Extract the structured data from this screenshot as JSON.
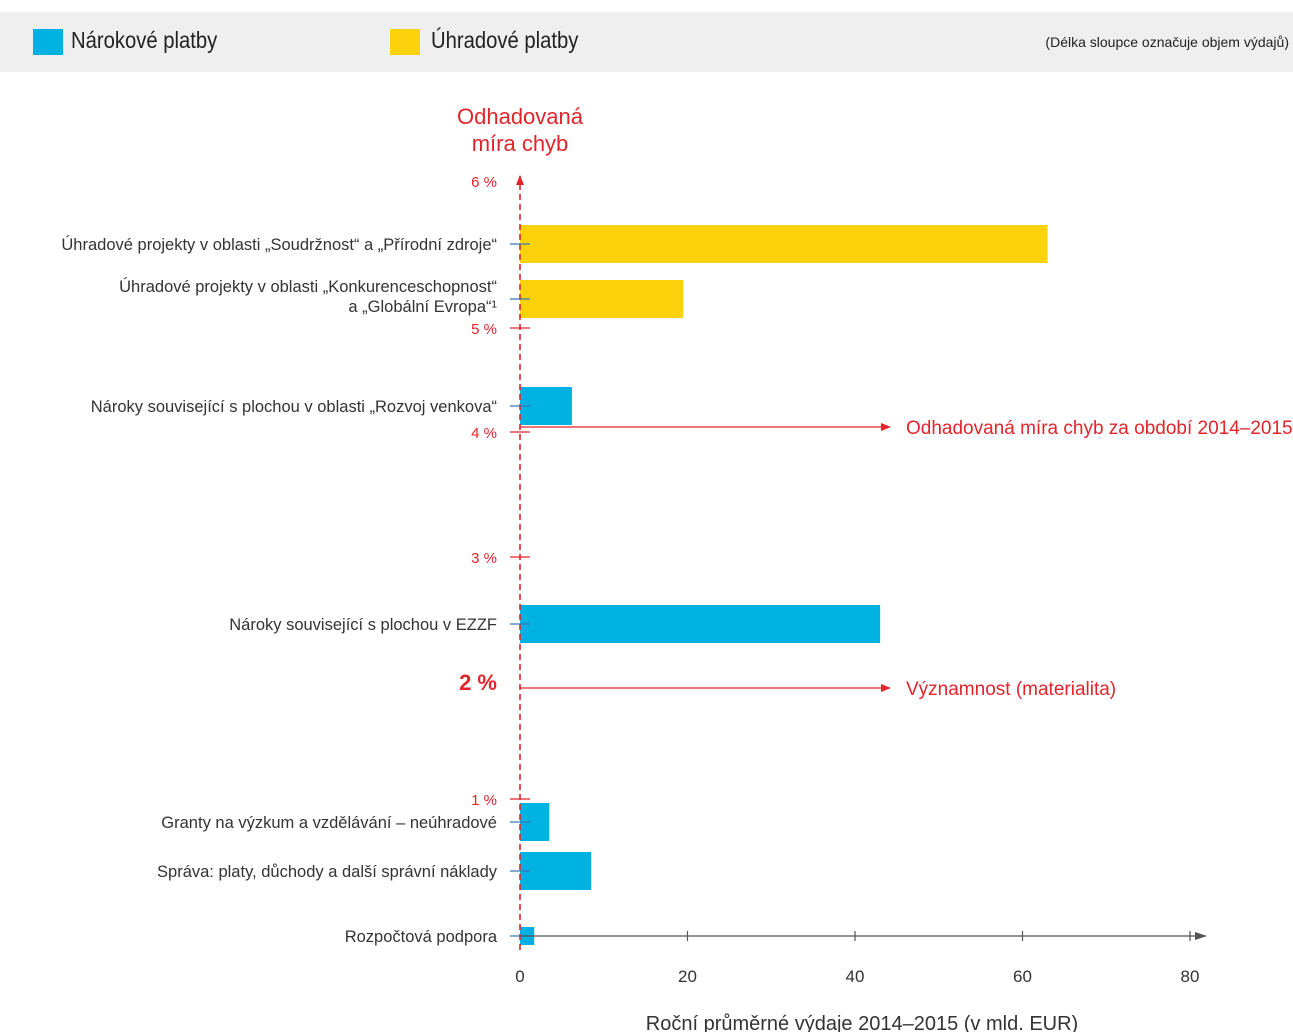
{
  "legend": {
    "items": [
      {
        "label": "Nárokové platby",
        "color": "#00b2e2"
      },
      {
        "label": "Úhradové platby",
        "color": "#fcd20d"
      }
    ],
    "note": "(Délka sloupce označuje objem výdajů)"
  },
  "colors": {
    "entitlement": "#00b2e2",
    "reimbursement": "#fcd20d",
    "accent": "#e3242b",
    "axis": "#555555"
  },
  "chart_data": {
    "type": "bar",
    "orientation": "horizontal",
    "y_axis_title_lines": [
      "Odhadovaná",
      "míra chyb"
    ],
    "xlabel": "Roční průměrné výdaje 2014–2015 (v mld. EUR)",
    "xlim": [
      0,
      80
    ],
    "x_ticks": [
      "0",
      "20",
      "40",
      "60",
      "80"
    ],
    "y_ticks": [
      "6 %",
      "5 %",
      "4 %",
      "3 %",
      "2 %",
      "1 %"
    ],
    "categories": [
      {
        "lines": [
          "Úhradové projekty v oblasti „Soudržnost“ a „Přírodní zdroje“"
        ],
        "type": "reimbursement",
        "spending": 63,
        "error_rate": 5.6
      },
      {
        "lines": [
          "Úhradové projekty v oblasti „Konkurenceschopnost“",
          "a „Globální Evropa“¹"
        ],
        "type": "reimbursement",
        "spending": 19.5,
        "error_rate": 5.0
      },
      {
        "lines": [
          "Nároky související s plochou v oblasti „Rozvoj venkova“"
        ],
        "type": "entitlement",
        "spending": 6.2,
        "error_rate": 4.25
      },
      {
        "lines": [
          "Nároky související s plochou v EZZF"
        ],
        "type": "entitlement",
        "spending": 43,
        "error_rate": 2.5
      },
      {
        "lines": [
          "Granty na výzkum a vzdělávání – neúhradové"
        ],
        "type": "entitlement",
        "spending": 3.5,
        "error_rate": 0.92
      },
      {
        "lines": [
          "Správa: platy, důchody a další správní náklady"
        ],
        "type": "entitlement",
        "spending": 8.5,
        "error_rate": 0.5
      },
      {
        "lines": [
          "Rozpočtová podpora"
        ],
        "type": "entitlement",
        "spending": 1.7,
        "error_rate": 0.0
      }
    ],
    "reference_lines": [
      {
        "value": 4.05,
        "label": "Odhadovaná míra chyb za období 2014–2015"
      },
      {
        "value": 2.0,
        "label": "Významnost (materialita)"
      }
    ]
  }
}
